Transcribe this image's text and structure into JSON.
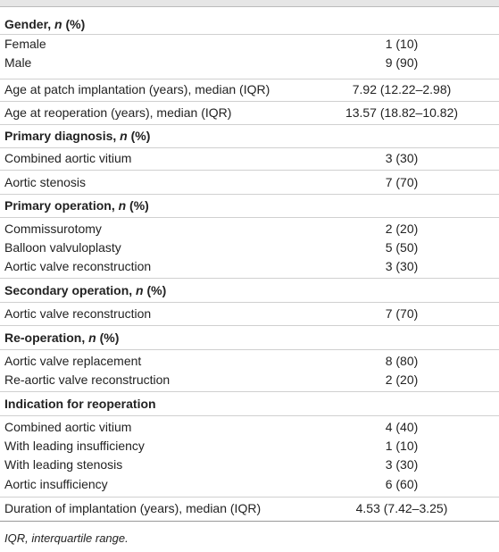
{
  "table": {
    "rows": [
      {
        "header": true,
        "label": [
          "Gender, ",
          "n",
          " (%)"
        ]
      },
      {
        "label": "Female",
        "value": "1 (10)"
      },
      {
        "label": "Male",
        "value": "9 (90)"
      },
      {
        "label": "Age at patch implantation (years), median (IQR)",
        "value": "7.92 (12.22–2.98)"
      },
      {
        "label": "Age at reoperation (years), median (IQR)",
        "value": "13.57 (18.82–10.82)"
      },
      {
        "header": true,
        "label": [
          "Primary diagnosis, ",
          "n",
          " (%)"
        ]
      },
      {
        "label": "Combined aortic vitium",
        "value": "3 (30)"
      },
      {
        "label": "Aortic stenosis",
        "value": "7 (70)"
      },
      {
        "header": true,
        "label": [
          "Primary operation, ",
          "n",
          " (%)"
        ]
      },
      {
        "label": "Commissurotomy",
        "value": "2 (20)"
      },
      {
        "label": "Balloon valvuloplasty",
        "value": "5 (50)"
      },
      {
        "label": "Aortic valve reconstruction",
        "value": "3 (30)"
      },
      {
        "header": true,
        "label": [
          "Secondary operation, ",
          "n",
          " (%)"
        ]
      },
      {
        "label": "Aortic valve reconstruction",
        "value": "7 (70)"
      },
      {
        "header": true,
        "label": [
          "Re-operation, ",
          "n",
          " (%)"
        ]
      },
      {
        "label": "Aortic valve replacement",
        "value": "8 (80)"
      },
      {
        "label": "Re-aortic valve reconstruction",
        "value": "2 (20)"
      },
      {
        "header": true,
        "label": [
          "Indication for reoperation"
        ]
      },
      {
        "label": "Combined aortic vitium",
        "value": "4 (40)"
      },
      {
        "label": "With leading insufficiency",
        "value": "1 (10)"
      },
      {
        "label": "With leading stenosis",
        "value": "3 (30)"
      },
      {
        "label": "Aortic insufficiency",
        "value": "6 (60)"
      },
      {
        "label": "Duration of implantation (years), median (IQR)",
        "value": "4.53 (7.42–3.25)"
      }
    ]
  },
  "footnote": "IQR, interquartile range."
}
